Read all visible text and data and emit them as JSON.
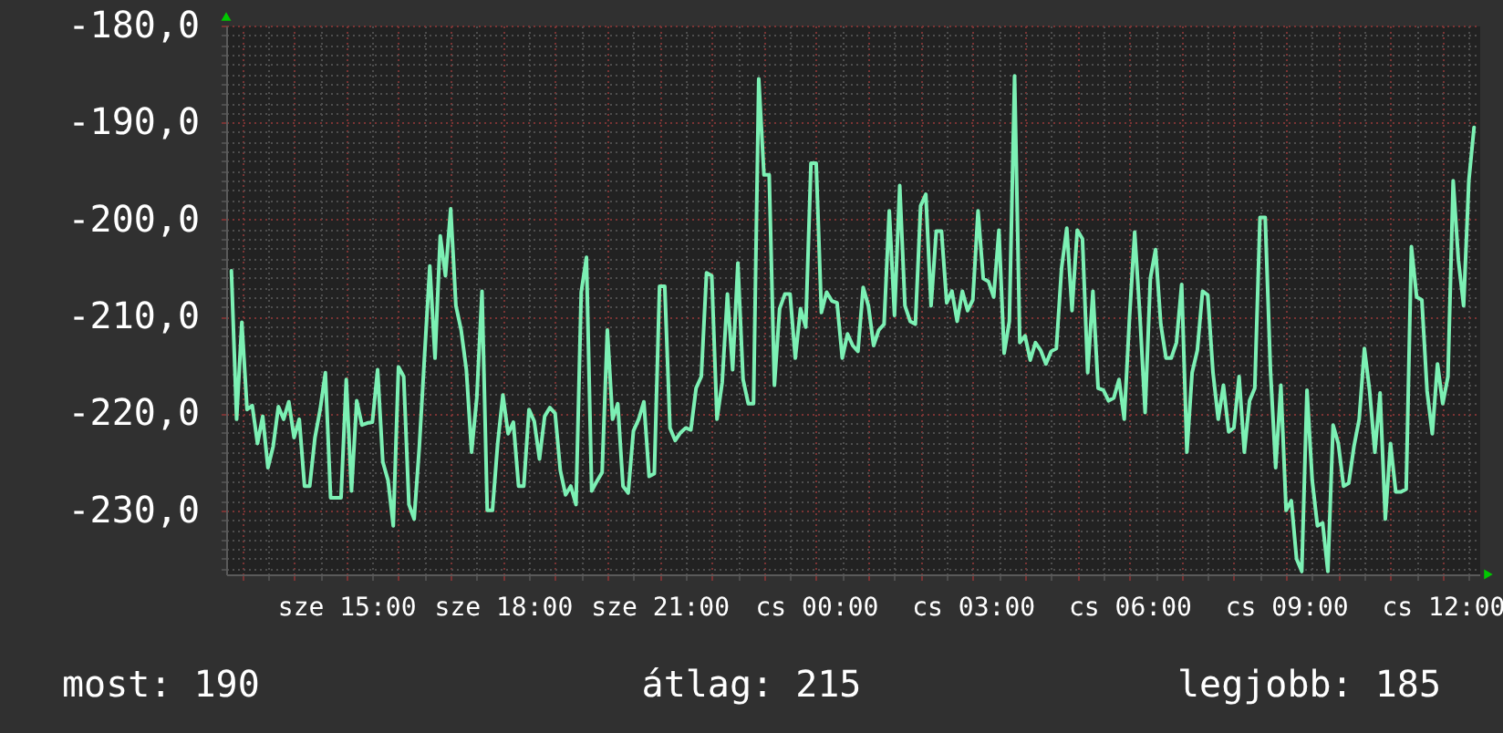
{
  "chart_data": {
    "type": "line",
    "categories": [
      null,
      null,
      null,
      null,
      null,
      null,
      null,
      null,
      null,
      null,
      null,
      null,
      null,
      null,
      null,
      null,
      null,
      null,
      null,
      null,
      null,
      null,
      "sze 15:00",
      null,
      null,
      null,
      null,
      null,
      null,
      null,
      null,
      null,
      null,
      null,
      null,
      null,
      null,
      null,
      null,
      null,
      null,
      null,
      null,
      null,
      null,
      null,
      null,
      null,
      null,
      null,
      null,
      null,
      "sze 18:00",
      null,
      null,
      null,
      null,
      null,
      null,
      null,
      null,
      null,
      null,
      null,
      null,
      null,
      null,
      null,
      null,
      null,
      null,
      null,
      null,
      null,
      null,
      null,
      null,
      null,
      null,
      null,
      null,
      null,
      "sze 21:00",
      null,
      null,
      null,
      null,
      null,
      null,
      null,
      null,
      null,
      null,
      null,
      null,
      null,
      null,
      null,
      null,
      null,
      null,
      null,
      null,
      null,
      null,
      null,
      null,
      null,
      null,
      null,
      null,
      null,
      "cs 00:00",
      null,
      null,
      null,
      null,
      null,
      null,
      null,
      null,
      null,
      null,
      null,
      null,
      null,
      null,
      null,
      null,
      null,
      null,
      null,
      null,
      null,
      null,
      null,
      null,
      null,
      null,
      null,
      null,
      null,
      "cs 03:00",
      null,
      null,
      null,
      null,
      null,
      null,
      null,
      null,
      null,
      null,
      null,
      null,
      null,
      null,
      null,
      null,
      null,
      null,
      null,
      null,
      null,
      null,
      null,
      null,
      null,
      null,
      null,
      null,
      null,
      "cs 06:00",
      null,
      null,
      null,
      null,
      null,
      null,
      null,
      null,
      null,
      null,
      null,
      null,
      null,
      null,
      null,
      null,
      null,
      null,
      null,
      null,
      null,
      null,
      null,
      null,
      null,
      null,
      null,
      null,
      null,
      "cs 09:00",
      null,
      null,
      null,
      null,
      null,
      null,
      null,
      null,
      null,
      null,
      null,
      null,
      null,
      null,
      null,
      null,
      null,
      null,
      null,
      null,
      null,
      null,
      null,
      null,
      null,
      null,
      null,
      null,
      null,
      "cs 12:00",
      null,
      null,
      null,
      null,
      null,
      null
    ],
    "series": [
      {
        "color": "#7cf0b4",
        "values": [
          -205.3,
          -220.6,
          -210.6,
          -219.6,
          -219.2,
          -223.1,
          -220.3,
          -225.6,
          -223.4,
          -219.3,
          -220.6,
          -218.8,
          -222.5,
          -220.6,
          -227.5,
          -227.5,
          -222.5,
          -219.6,
          -215.8,
          -228.7,
          -228.7,
          -228.7,
          -216.5,
          -228.0,
          -218.7,
          -221.2,
          -221.0,
          -220.9,
          -215.5,
          -225.0,
          -226.9,
          -231.6,
          -215.2,
          -216.2,
          -229.4,
          -230.9,
          -223.4,
          -214.0,
          -204.8,
          -214.3,
          -201.7,
          -205.8,
          -198.9,
          -208.9,
          -211.4,
          -215.5,
          -224.0,
          -218.4,
          -207.4,
          -230.0,
          -230.0,
          -223.1,
          -218.1,
          -222.1,
          -220.9,
          -227.5,
          -227.5,
          -219.6,
          -220.8,
          -224.7,
          -220.3,
          -219.4,
          -220.0,
          -225.9,
          -228.4,
          -227.5,
          -229.4,
          -207.5,
          -203.9,
          -228.0,
          -227.0,
          -226.1,
          -211.4,
          -220.6,
          -219.0,
          -227.5,
          -228.2,
          -221.8,
          -220.6,
          -218.8,
          -226.5,
          -226.2,
          -206.9,
          -206.9,
          -221.5,
          -222.8,
          -222.0,
          -221.5,
          -221.7,
          -217.4,
          -216.2,
          -205.5,
          -205.8,
          -220.6,
          -216.8,
          -207.7,
          -215.5,
          -204.5,
          -216.5,
          -219.0,
          -219.0,
          -185.5,
          -195.4,
          -195.4,
          -217.1,
          -209.2,
          -207.7,
          -207.7,
          -214.3,
          -209.2,
          -211.1,
          -194.2,
          -194.2,
          -209.6,
          -207.5,
          -208.4,
          -208.6,
          -214.3,
          -211.8,
          -213.0,
          -213.6,
          -207.0,
          -208.9,
          -213.0,
          -211.4,
          -210.8,
          -199.1,
          -209.9,
          -196.5,
          -208.9,
          -210.5,
          -210.8,
          -198.6,
          -197.4,
          -208.9,
          -201.2,
          -201.2,
          -208.6,
          -207.4,
          -210.5,
          -207.4,
          -209.4,
          -208.3,
          -199.1,
          -206.1,
          -206.4,
          -208.0,
          -201.1,
          -213.8,
          -210.5,
          -185.2,
          -212.7,
          -212.0,
          -214.5,
          -212.7,
          -213.5,
          -214.9,
          -213.6,
          -213.3,
          -205.0,
          -200.9,
          -209.4,
          -201.1,
          -202.0,
          -215.8,
          -207.4,
          -217.4,
          -217.6,
          -218.7,
          -218.4,
          -216.5,
          -220.6,
          -210.2,
          -201.3,
          -209.9,
          -219.9,
          -206.1,
          -203.1,
          -210.8,
          -214.3,
          -214.3,
          -212.7,
          -206.7,
          -224.0,
          -215.8,
          -213.5,
          -207.4,
          -207.8,
          -215.8,
          -220.6,
          -217.1,
          -221.9,
          -221.5,
          -216.2,
          -224.0,
          -218.7,
          -217.4,
          -199.8,
          -199.8,
          -215.5,
          -225.6,
          -217.1,
          -230.0,
          -229.0,
          -235.0,
          -236.3,
          -217.6,
          -226.9,
          -231.6,
          -231.3,
          -236.3,
          -221.2,
          -223.1,
          -227.5,
          -227.2,
          -223.4,
          -220.6,
          -213.3,
          -217.7,
          -224.0,
          -217.9,
          -230.9,
          -223.1,
          -228.1,
          -228.1,
          -227.8,
          -202.8,
          -208.0,
          -208.3,
          -217.7,
          -222.1,
          -214.9,
          -219.0,
          -216.2,
          -196.0,
          -204.2,
          -208.9,
          -196.0,
          -190.5
        ]
      }
    ],
    "ylim": [
      -236.6,
      -180
    ],
    "yticks": [
      {
        "value": -236,
        "label": null
      },
      {
        "value": -235,
        "label": null
      },
      {
        "value": -234,
        "label": null
      },
      {
        "value": -233,
        "label": null
      },
      {
        "value": -232,
        "label": null
      },
      {
        "value": -231,
        "label": null
      },
      {
        "value": -230,
        "label": "-230,0"
      },
      {
        "value": -229,
        "label": null
      },
      {
        "value": -228,
        "label": null
      },
      {
        "value": -227,
        "label": null
      },
      {
        "value": -226,
        "label": null
      },
      {
        "value": -225,
        "label": null
      },
      {
        "value": -224,
        "label": null
      },
      {
        "value": -223,
        "label": null
      },
      {
        "value": -222,
        "label": null
      },
      {
        "value": -221,
        "label": null
      },
      {
        "value": -220,
        "label": "-220,0"
      },
      {
        "value": -219,
        "label": null
      },
      {
        "value": -218,
        "label": null
      },
      {
        "value": -217,
        "label": null
      },
      {
        "value": -216,
        "label": null
      },
      {
        "value": -215,
        "label": null
      },
      {
        "value": -214,
        "label": null
      },
      {
        "value": -213,
        "label": null
      },
      {
        "value": -212,
        "label": null
      },
      {
        "value": -211,
        "label": null
      },
      {
        "value": -210,
        "label": "-210,0"
      },
      {
        "value": -209,
        "label": null
      },
      {
        "value": -208,
        "label": null
      },
      {
        "value": -207,
        "label": null
      },
      {
        "value": -206,
        "label": null
      },
      {
        "value": -205,
        "label": null
      },
      {
        "value": -204,
        "label": null
      },
      {
        "value": -203,
        "label": null
      },
      {
        "value": -202,
        "label": null
      },
      {
        "value": -201,
        "label": null
      },
      {
        "value": -200,
        "label": "-200,0"
      },
      {
        "value": -199,
        "label": null
      },
      {
        "value": -198,
        "label": null
      },
      {
        "value": -197,
        "label": null
      },
      {
        "value": -196,
        "label": null
      },
      {
        "value": -195,
        "label": null
      },
      {
        "value": -194,
        "label": null
      },
      {
        "value": -193,
        "label": null
      },
      {
        "value": -192,
        "label": null
      },
      {
        "value": -191,
        "label": null
      },
      {
        "value": -190,
        "label": "-190,0"
      },
      {
        "value": -189,
        "label": null
      },
      {
        "value": -188,
        "label": null
      },
      {
        "value": -187,
        "label": null
      },
      {
        "value": -186,
        "label": null
      },
      {
        "value": -185,
        "label": null
      },
      {
        "value": -184,
        "label": null
      },
      {
        "value": -183,
        "label": null
      },
      {
        "value": -182,
        "label": null
      },
      {
        "value": -181,
        "label": null
      },
      {
        "value": -180,
        "label": "-180,0"
      }
    ],
    "grid": true,
    "annotations": [
      "most: 190",
      "átlag: 215",
      "legjobb: 185"
    ]
  }
}
